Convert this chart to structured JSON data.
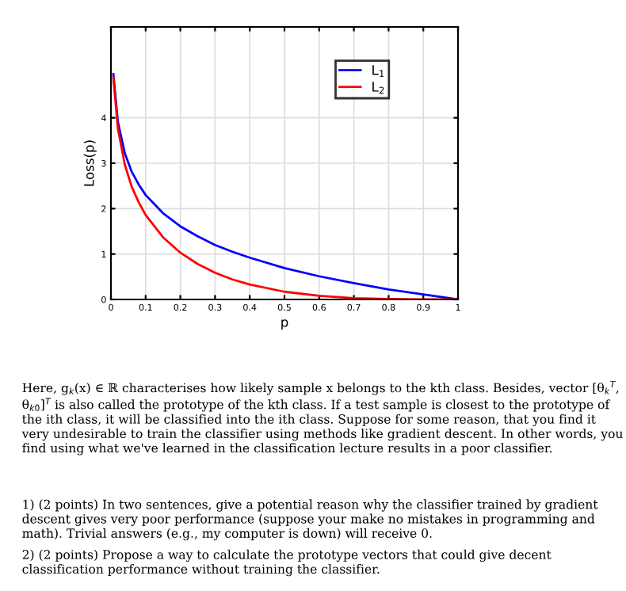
{
  "chart_data": {
    "type": "line",
    "xlabel": "p",
    "ylabel": "Loss(p)",
    "x": [
      0.007,
      0.02,
      0.04,
      0.06,
      0.08,
      0.1,
      0.15,
      0.2,
      0.25,
      0.3,
      0.35,
      0.4,
      0.5,
      0.6,
      0.7,
      0.8,
      0.9,
      1.0
    ],
    "series": [
      {
        "name": "L$_{1}$",
        "color": "#0000ff",
        "values": [
          4.96,
          3.91,
          3.22,
          2.81,
          2.53,
          2.3,
          1.9,
          1.61,
          1.39,
          1.2,
          1.05,
          0.92,
          0.69,
          0.51,
          0.36,
          0.22,
          0.11,
          0
        ]
      },
      {
        "name": "L$_{2}$",
        "color": "#ff0000",
        "values": [
          4.89,
          3.76,
          2.97,
          2.48,
          2.14,
          1.86,
          1.37,
          1.03,
          0.78,
          0.59,
          0.44,
          0.33,
          0.17,
          0.08,
          0.03,
          0.01,
          0,
          0
        ]
      }
    ],
    "xlim": [
      0,
      1
    ],
    "ylim": [
      0,
      6
    ],
    "xticks": [
      0,
      0.1,
      0.2,
      0.3,
      0.4,
      0.5,
      0.6,
      0.7,
      0.8,
      0.9,
      1
    ],
    "yticks": [
      0,
      1,
      2,
      3,
      4
    ],
    "grid": true,
    "legend": "top right",
    "marker": "none",
    "line_style": "solid",
    "annotations": [
      "Here, g$_{k}$(x) ∈ ℝ characterises how likely sample x belongs to the kth class. Besides, vector [θ$_{k}$$^{T}$, θ$_{k0}$]$^{T}$ is also called the prototype of the kth class. If a test sample is closest to the prototype of the ith class, it will be classified into the ith class. Suppose for some reason, that you find it very undesirable to train the classifier using methods like gradient descent. In other words, you find using what we've learned in the classification lecture results in a poor classifier.",
      "1) (2 points) In two sentences, give a potential reason why the classifier trained by gradient descent gives very poor performance (suppose your make no mistakes in programming and math). Trivial answers (e.g., my computer is down) will receive 0.",
      "2) (2 points) Propose a way to calculate the prototype vectors that could give decent classification performance without training the classifier."
    ]
  }
}
